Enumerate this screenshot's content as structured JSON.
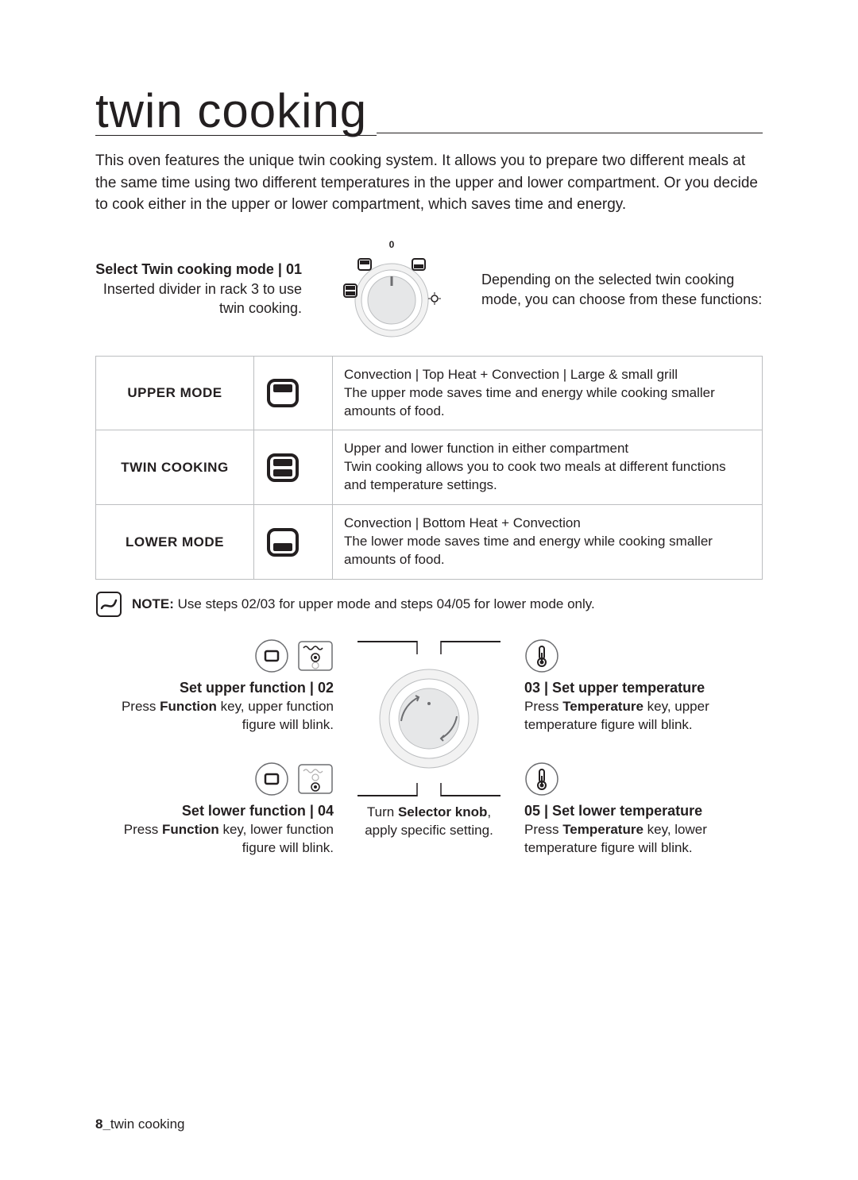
{
  "page": {
    "title": "twin cooking",
    "intro": "This oven features the unique twin cooking system. It allows you to prepare two different meals at the same time using two different temperatures in the upper and lower compartment. Or you decide to cook either in the upper or lower compartment, which saves time and energy.",
    "footer_left": "8_",
    "footer_right": "twin cooking"
  },
  "step1": {
    "title": "Select Twin cooking mode | 01",
    "sub": "Inserted divider in rack 3 to use twin cooking.",
    "right": "Depending on the selected twin cooking mode, you can choose from these functions:",
    "dial_label": "0"
  },
  "modes": [
    {
      "name": "UPPER MODE",
      "desc": "Convection | Top Heat + Convection | Large & small grill\nThe upper mode saves time and energy while cooking smaller amounts of food.",
      "icon": "upper"
    },
    {
      "name": "TWIN COOKING",
      "desc": "Upper and lower function in either compartment\nTwin cooking allows you to cook two meals at different functions and temperature settings.",
      "icon": "twin"
    },
    {
      "name": "LOWER MODE",
      "desc": "Convection | Bottom Heat + Convection\nThe lower mode saves time and energy while cooking smaller amounts of food.",
      "icon": "lower"
    }
  ],
  "note": {
    "label": "NOTE:",
    "text": "Use steps 02/03 for upper mode and steps 04/05 for lower mode only."
  },
  "left_steps": {
    "s02": {
      "title": "Set upper function | 02",
      "body_pre": "Press ",
      "body_key": "Function",
      "body_post": " key, upper function figure will blink."
    },
    "s04": {
      "title": "Set lower function | 04",
      "body_pre": "Press ",
      "body_key": "Function",
      "body_post": " key, lower function figure will blink."
    }
  },
  "center": {
    "body_pre": "Turn ",
    "body_key": "Selector knob",
    "body_post": ", apply specific setting."
  },
  "right_steps": {
    "s03": {
      "title": "03 | Set upper temperature",
      "body_pre": "Press ",
      "body_key": "Temperature",
      "body_post": " key, upper temperature figure will blink."
    },
    "s05": {
      "title": "05 | Set lower temperature",
      "body_pre": "Press ",
      "body_key": "Temperature",
      "body_post": " key, lower temperature figure will blink."
    }
  },
  "colors": {
    "stroke": "#6d6e71",
    "fill": "#231f20",
    "light": "#bcbec0"
  }
}
